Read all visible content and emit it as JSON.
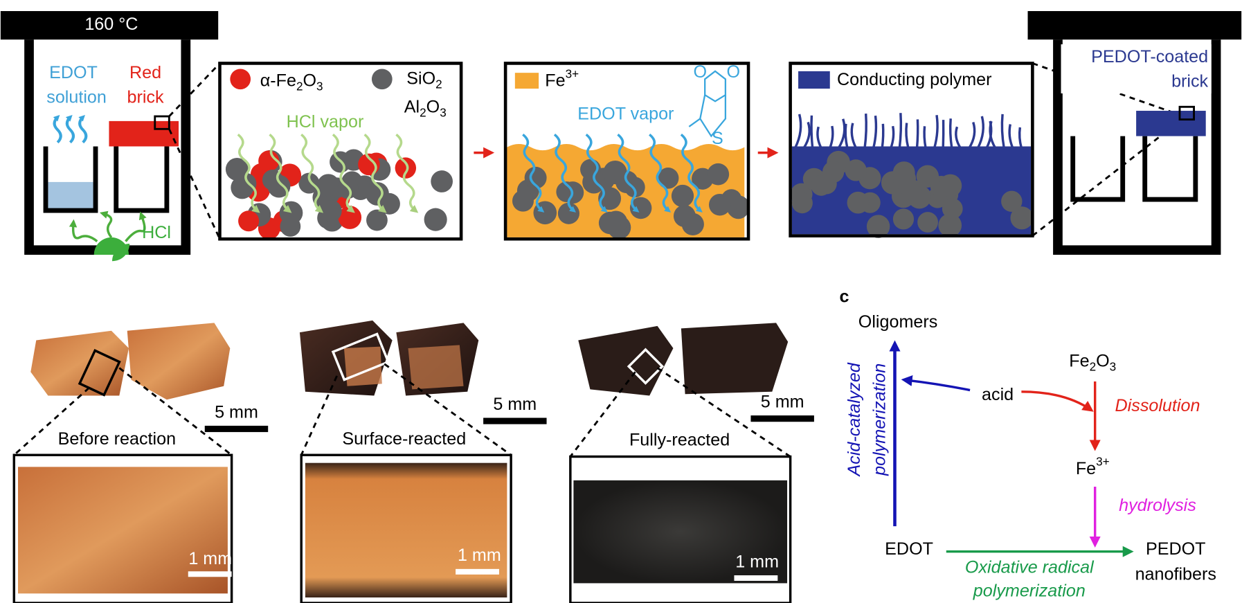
{
  "panel_a": {
    "oven_temp": "160 °C",
    "edot_solution": [
      "EDOT",
      "solution"
    ],
    "red_brick": [
      "Red",
      "brick"
    ],
    "hcl": "HCl",
    "legend_fe2o3": [
      "α-Fe",
      "2",
      "O",
      "3"
    ],
    "legend_sio2": [
      "SiO",
      "2"
    ],
    "legend_al2o3": [
      "Al",
      "2",
      "O",
      "3"
    ],
    "hcl_vapor": "HCl vapor",
    "legend_fe3": [
      "Fe",
      "3+"
    ],
    "edot_vapor": "EDOT vapor",
    "legend_polymer": "Conducting polymer",
    "pedot_brick": [
      "PEDOT-coated",
      "brick"
    ]
  },
  "panel_b": {
    "samples": [
      {
        "scale_large": "5 mm",
        "label": "Before reaction",
        "scale_small": "1 mm"
      },
      {
        "scale_large": "5 mm",
        "label": "Surface-reacted",
        "scale_small": "1 mm"
      },
      {
        "scale_large": "5 mm",
        "label": "Fully-reacted",
        "scale_small": "1 mm"
      }
    ]
  },
  "panel_c": {
    "label": "c",
    "oligomers": "Oligomers",
    "fe2o3": [
      "Fe",
      "2",
      "O",
      "3"
    ],
    "acid": "acid",
    "dissolution": "Dissolution",
    "fe3": [
      "Fe",
      "3+"
    ],
    "hydrolysis": "hydrolysis",
    "edot": "EDOT",
    "pedot": [
      "PEDOT",
      "nanofibers"
    ],
    "acid_catalyzed": [
      "Acid-catalyzed",
      "polymerization"
    ],
    "oxidative": [
      "Oxidative radical",
      "polymerization"
    ]
  }
}
